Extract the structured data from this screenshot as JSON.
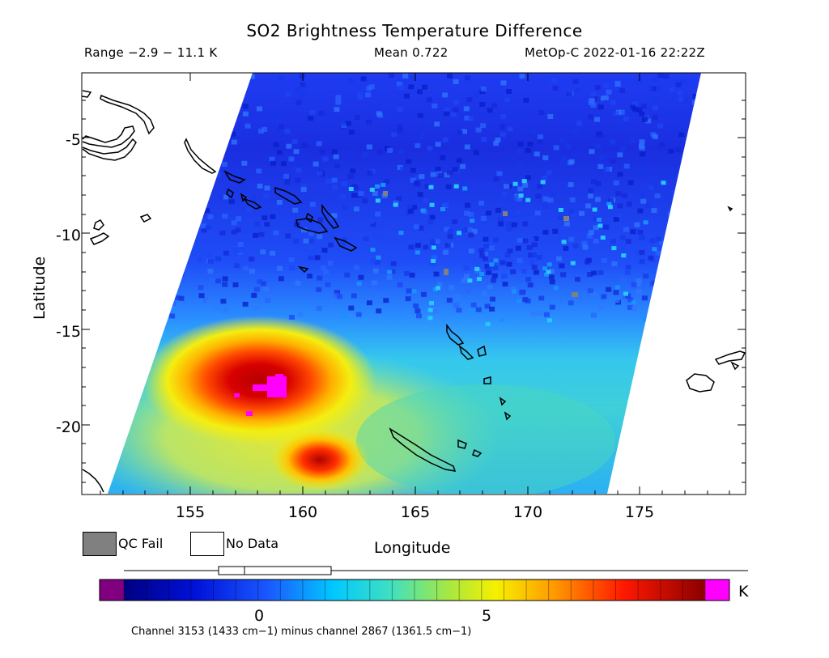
{
  "title": "SO2 Brightness Temperature Difference",
  "range_label": "Range −2.9 − 11.1 K",
  "mean_label": "Mean 0.722",
  "satellite_label": "MetOp-C 2022-01-16 22:22Z",
  "y_axis_label": "Latitude",
  "x_axis_label": "Longitude",
  "y_ticks": [
    "-5",
    "-10",
    "-15",
    "-20"
  ],
  "x_ticks": [
    "155",
    "160",
    "165",
    "170",
    "175"
  ],
  "legend": {
    "qc_fail": "QC Fail",
    "no_data": "No Data",
    "qc_fail_color": "#808080",
    "no_data_color": "#ffffff"
  },
  "colorbar": {
    "unit": "K",
    "tick_labels": [
      "0",
      "5"
    ],
    "under_color": "#800080",
    "over_color": "#ff00ff",
    "caption": "Channel 3153 (1433 cm−1) minus channel 2867 (1361.5 cm−1)"
  },
  "colors": {
    "background_swath": "#1a3cff",
    "hot": "#c80000"
  }
}
